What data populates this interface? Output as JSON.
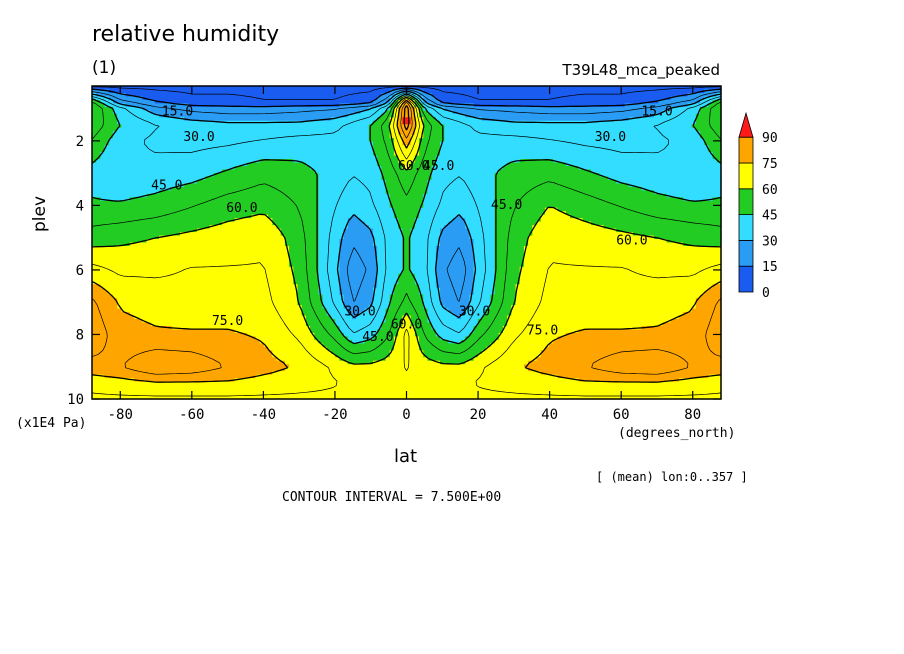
{
  "title": "relative humidity",
  "panel_label": "(1)",
  "experiment": "T39L48_mca_peaked",
  "x_axis": {
    "label": "lat",
    "units": "(degrees_north)",
    "ticks": [
      -80,
      -60,
      -40,
      -20,
      0,
      20,
      40,
      60,
      80
    ],
    "range": [
      -87.9,
      87.9
    ]
  },
  "y_axis": {
    "label": "plev",
    "units": "(x1E4 Pa)",
    "ticks": [
      2,
      4,
      6,
      8,
      10
    ],
    "range": [
      0.3,
      10
    ],
    "inverted": true
  },
  "averaging_note": "[ (mean) lon:0..357 ]",
  "contour_interval": "CONTOUR INTERVAL = 7.500E+00",
  "colorbar": {
    "levels": [
      "90",
      "75",
      "60",
      "45",
      "30",
      "15",
      "0"
    ],
    "colors": [
      "#1a5cf0",
      "#2a9cf4",
      "#33ddff",
      "#22cc22",
      "#ffff00",
      "#ffa500",
      "#ff1a1a"
    ]
  },
  "contour_labels": [
    {
      "text": "15.0",
      "lat": -64,
      "p": 1.1
    },
    {
      "text": "30.0",
      "lat": -58,
      "p": 1.9
    },
    {
      "text": "45.0",
      "lat": -67,
      "p": 3.4
    },
    {
      "text": "60.0",
      "lat": -46,
      "p": 4.1
    },
    {
      "text": "75.0",
      "lat": -50,
      "p": 7.6
    },
    {
      "text": "30.0",
      "lat": -13,
      "p": 7.3
    },
    {
      "text": "45.0",
      "lat": -8,
      "p": 8.1
    },
    {
      "text": "60.0",
      "lat": 0,
      "p": 7.7
    },
    {
      "text": "60.0",
      "lat": 2,
      "p": 2.8
    },
    {
      "text": "45.0",
      "lat": 9,
      "p": 2.8
    },
    {
      "text": "45.0",
      "lat": 28,
      "p": 4.0
    },
    {
      "text": "30.0",
      "lat": 19,
      "p": 7.3
    },
    {
      "text": "75.0",
      "lat": 38,
      "p": 7.9
    },
    {
      "text": "60.0",
      "lat": 63,
      "p": 5.1
    },
    {
      "text": "30.0",
      "lat": 57,
      "p": 1.9
    },
    {
      "text": "15.0",
      "lat": 70,
      "p": 1.1
    }
  ],
  "chart_data": {
    "type": "heatmap",
    "title": "relative humidity",
    "xlabel": "lat",
    "ylabel": "plev",
    "x_units": "degrees_north",
    "y_units": "x1E4 Pa",
    "xlim": [
      -87.9,
      87.9
    ],
    "ylim": [
      10,
      0.3
    ],
    "contour_interval": 7.5,
    "x": [
      -87.9,
      -80,
      -70,
      -60,
      -50,
      -40,
      -30,
      -20,
      -15,
      -10,
      -5,
      0,
      5,
      10,
      15,
      20,
      30,
      40,
      50,
      60,
      70,
      80,
      87.9
    ],
    "y": [
      0.3,
      0.8,
      1.0,
      1.5,
      2.0,
      3.0,
      4.0,
      5.0,
      6.0,
      7.0,
      8.0,
      9.0,
      9.5,
      10.0
    ],
    "z": [
      [
        5,
        5,
        5,
        5,
        5,
        5,
        5,
        5,
        5,
        5,
        5,
        5,
        5,
        5,
        5,
        5,
        5,
        5,
        5,
        5,
        5,
        5,
        5
      ],
      [
        55,
        25,
        15,
        10,
        10,
        8,
        8,
        8,
        10,
        12,
        30,
        85,
        30,
        12,
        10,
        8,
        8,
        8,
        10,
        10,
        15,
        25,
        55
      ],
      [
        60,
        40,
        25,
        20,
        18,
        18,
        20,
        22,
        25,
        30,
        45,
        95,
        45,
        30,
        25,
        22,
        20,
        18,
        18,
        20,
        25,
        40,
        60
      ],
      [
        58,
        45,
        38,
        34,
        32,
        32,
        32,
        35,
        40,
        45,
        58,
        95,
        58,
        45,
        40,
        35,
        32,
        32,
        32,
        34,
        38,
        45,
        58
      ],
      [
        52,
        40,
        36,
        35,
        36,
        38,
        40,
        40,
        42,
        45,
        55,
        80,
        55,
        45,
        42,
        40,
        40,
        38,
        36,
        35,
        36,
        40,
        52
      ],
      [
        42,
        38,
        40,
        42,
        46,
        50,
        48,
        42,
        38,
        40,
        48,
        58,
        48,
        40,
        38,
        42,
        48,
        50,
        46,
        42,
        40,
        38,
        42
      ],
      [
        46,
        46,
        48,
        52,
        56,
        58,
        52,
        38,
        32,
        36,
        44,
        50,
        44,
        36,
        32,
        38,
        52,
        60,
        56,
        52,
        48,
        46,
        46
      ],
      [
        56,
        58,
        60,
        62,
        64,
        66,
        56,
        34,
        24,
        28,
        40,
        46,
        40,
        28,
        24,
        34,
        56,
        66,
        64,
        62,
        60,
        58,
        56
      ],
      [
        70,
        66,
        66,
        68,
        68,
        68,
        58,
        32,
        18,
        24,
        40,
        46,
        40,
        24,
        18,
        32,
        58,
        68,
        68,
        68,
        66,
        66,
        70
      ],
      [
        84,
        74,
        72,
        70,
        70,
        70,
        60,
        36,
        22,
        28,
        44,
        55,
        44,
        28,
        22,
        36,
        60,
        70,
        70,
        70,
        72,
        74,
        84
      ],
      [
        88,
        78,
        76,
        76,
        76,
        74,
        66,
        50,
        38,
        42,
        52,
        70,
        52,
        42,
        38,
        50,
        66,
        74,
        76,
        76,
        76,
        78,
        88
      ],
      [
        80,
        82,
        90,
        88,
        82,
        78,
        74,
        66,
        62,
        62,
        64,
        68,
        64,
        62,
        62,
        66,
        74,
        78,
        82,
        88,
        90,
        82,
        80
      ],
      [
        70,
        72,
        74,
        74,
        74,
        72,
        70,
        68,
        66,
        66,
        66,
        66,
        66,
        66,
        66,
        68,
        70,
        72,
        74,
        74,
        74,
        72,
        70
      ],
      [
        66,
        66,
        66,
        66,
        66,
        66,
        66,
        66,
        66,
        66,
        66,
        66,
        66,
        66,
        66,
        66,
        66,
        66,
        66,
        66,
        66,
        66,
        66
      ]
    ],
    "colorbar_levels": [
      0,
      15,
      30,
      45,
      60,
      75,
      90
    ]
  }
}
